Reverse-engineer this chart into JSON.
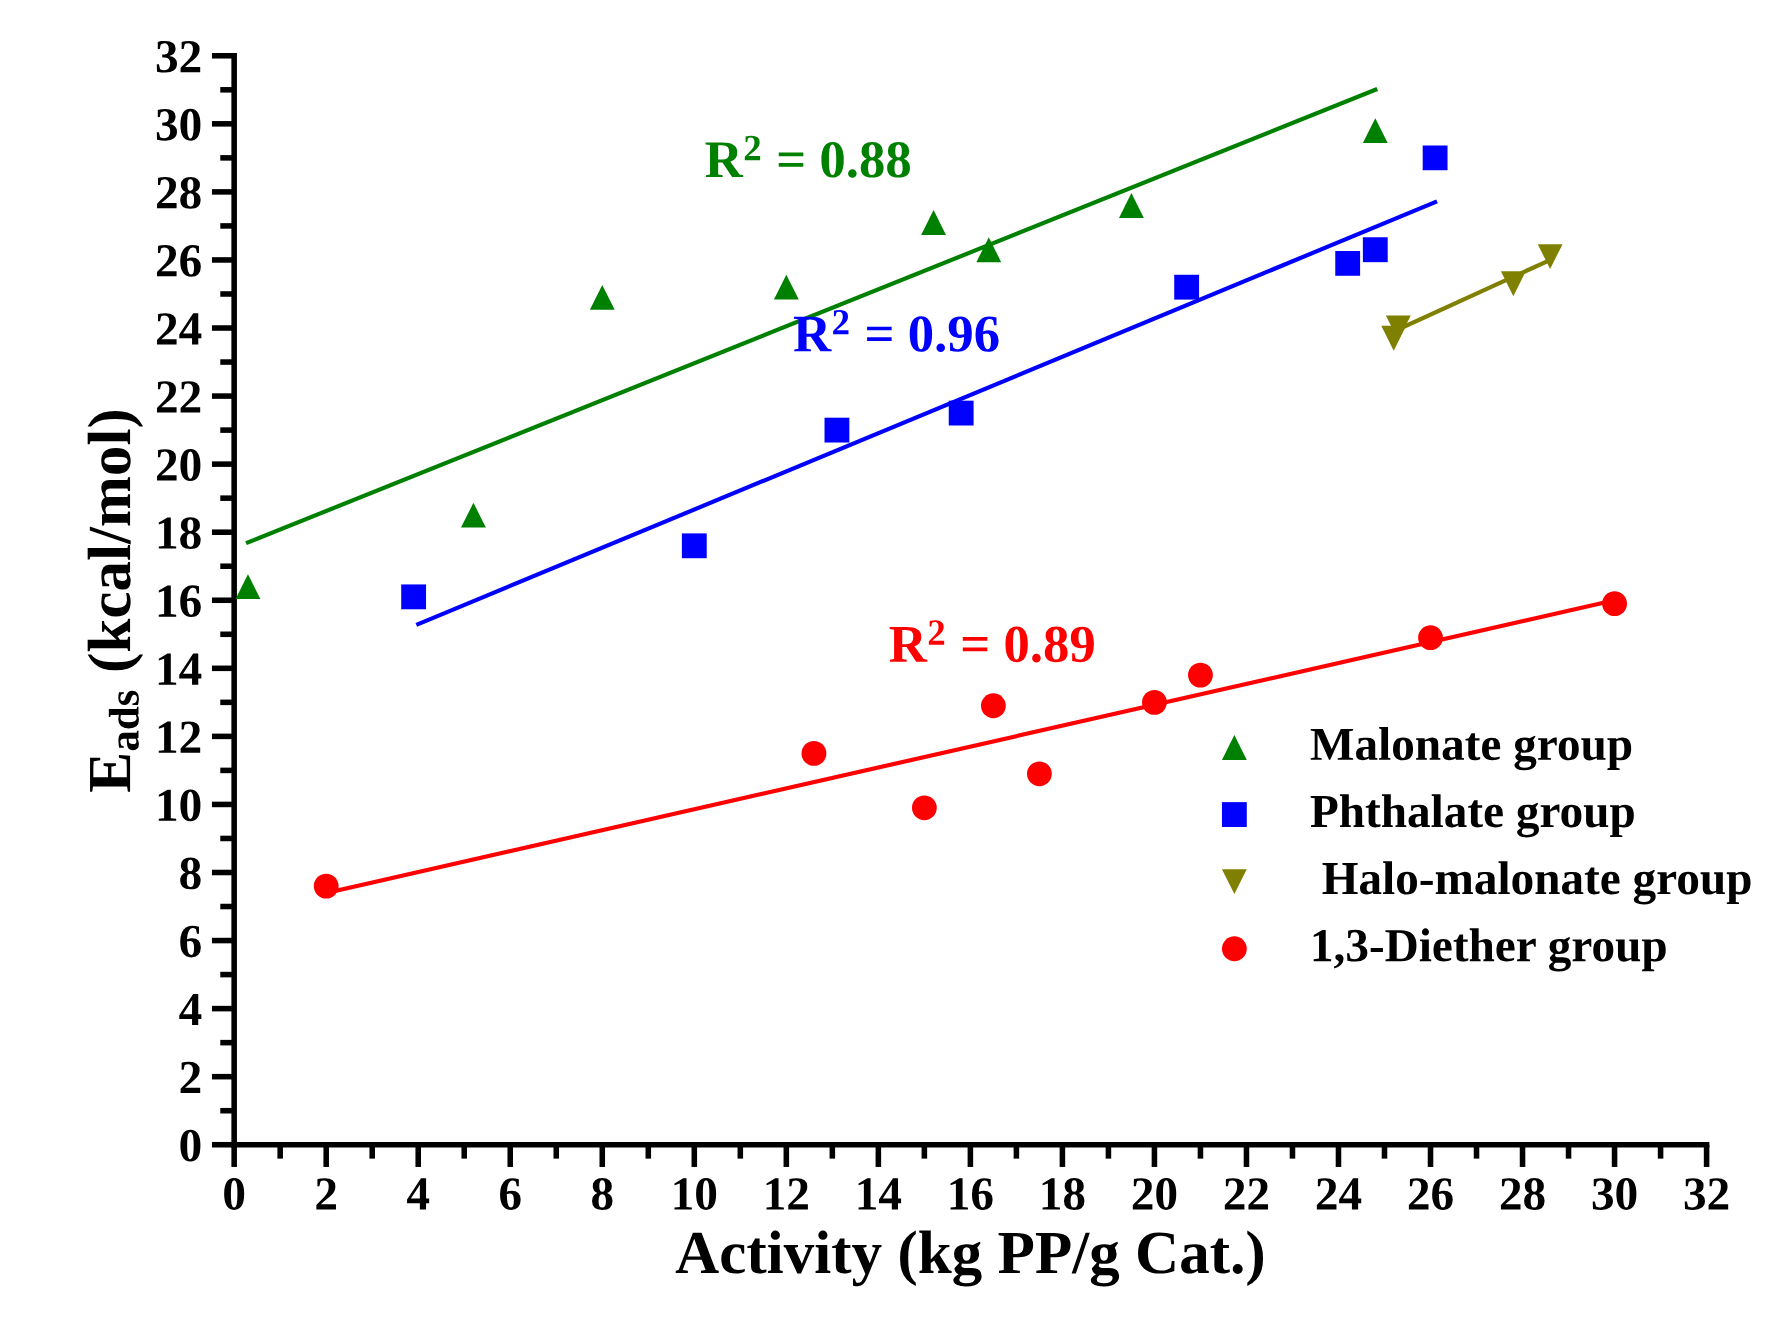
{
  "chart_data": {
    "type": "scatter",
    "xlabel": "Activity (kg PP/g Cat.)",
    "ylabel": "E$_{ads}$ (kcal/mol)",
    "xlim": [
      0,
      32
    ],
    "ylim": [
      0,
      32
    ],
    "xticks": [
      0,
      2,
      4,
      6,
      8,
      10,
      12,
      14,
      16,
      18,
      20,
      22,
      24,
      26,
      28,
      30,
      32
    ],
    "yticks": [
      0,
      2,
      4,
      6,
      8,
      10,
      12,
      14,
      16,
      18,
      20,
      22,
      24,
      26,
      28,
      30,
      32
    ],
    "grid": false,
    "legend": "bottom right",
    "series": [
      {
        "name": "Malonate group",
        "color": "#008000",
        "marker": "triangle",
        "x": [
          0.3,
          5.2,
          8,
          12,
          15.2,
          16.4,
          19.5,
          24.8
        ],
        "values": [
          16.4,
          18.5,
          24.9,
          25.2,
          27.1,
          26.3,
          27.6,
          29.8
        ]
      },
      {
        "name": "Phthalate group",
        "color": "#0000ff",
        "marker": "square",
        "x": [
          3.9,
          10,
          13.1,
          15.8,
          20.7,
          24.2,
          24.8,
          26.1
        ],
        "values": [
          16.1,
          17.6,
          21.0,
          21.5,
          25.2,
          25.9,
          26.3,
          29.0
        ]
      },
      {
        "name": " Halo-malonate group",
        "color": "#808000",
        "marker": "triangle_down",
        "x": [
          25.2,
          25.3,
          27.8,
          28.6
        ],
        "values": [
          23.7,
          24.0,
          25.3,
          26.1
        ]
      },
      {
        "name": "1,3-Diether group",
        "color": "#ff0000",
        "marker": "circle",
        "x": [
          2,
          12.6,
          15,
          16.5,
          17.5,
          20,
          21,
          26,
          30
        ],
        "values": [
          7.6,
          11.5,
          9.9,
          12.9,
          10.9,
          13.0,
          13.8,
          14.9,
          15.9
        ]
      },
      {
        "type": "line",
        "color": "#008000",
        "x": [
          0.3,
          24.8
        ],
        "values": [
          17.7,
          31.0
        ]
      },
      {
        "type": "line",
        "color": "#0000ff",
        "x": [
          4,
          26.1
        ],
        "values": [
          15.3,
          27.7
        ]
      },
      {
        "type": "line",
        "color": "#ff0000",
        "x": [
          2,
          30
        ],
        "values": [
          7.4,
          16.0
        ]
      },
      {
        "type": "line",
        "color": "#808000",
        "x": [
          25.2,
          28.6
        ],
        "values": [
          23.9,
          26.0
        ]
      }
    ],
    "annotations": [
      "R$^{2}$ = 0.88",
      "R$^{2}$ = 0.96",
      "R$^{2}$ = 0.89"
    ]
  }
}
